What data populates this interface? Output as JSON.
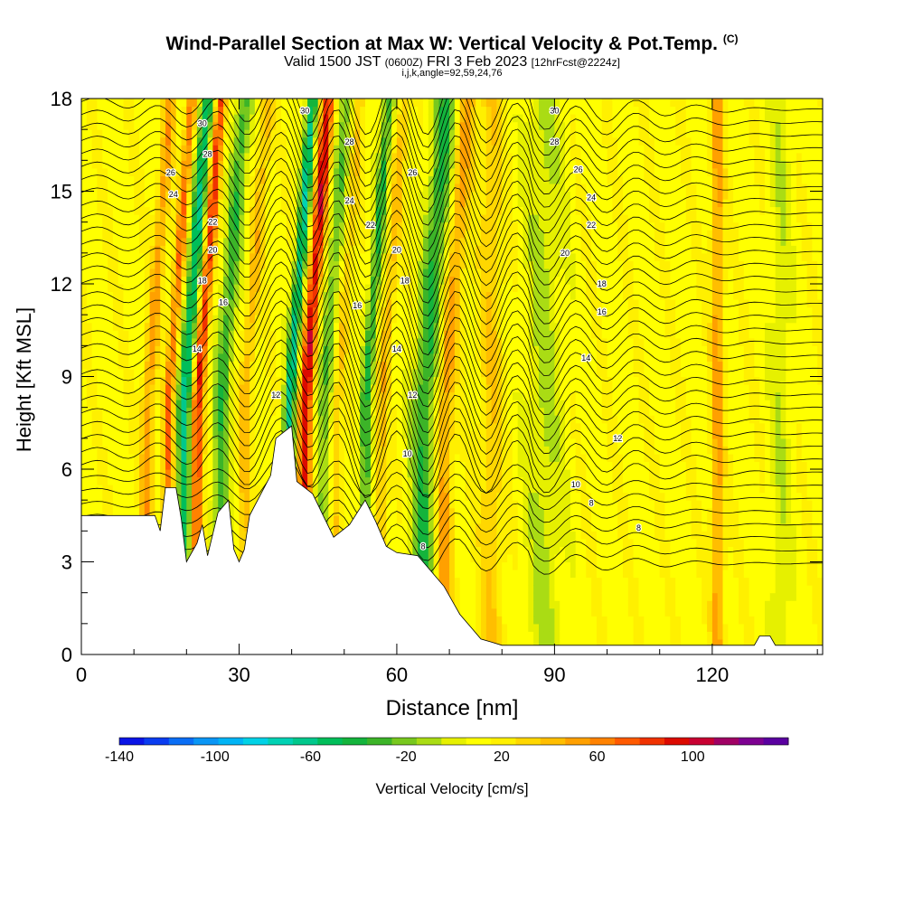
{
  "title": "Wind-Parallel Section at Max W: Vertical Velocity & Pot.Temp.",
  "title_mark": "(C)",
  "subtitle_prefix": "Valid 1500 JST",
  "subtitle_utc": "(0600Z)",
  "subtitle_date": "FRI 3 Feb 2023",
  "subtitle_fcst": "[12hrFcst@2224z]",
  "subtitle2": "i,j,k,angle=92,59,24,76",
  "chart_data": {
    "type": "heatmap",
    "xlabel": "Distance [nm]",
    "ylabel": "Height [Kft MSL]",
    "xlim": [
      0,
      141
    ],
    "ylim": [
      0,
      18
    ],
    "x_ticks": [
      "0",
      "30",
      "60",
      "90",
      "120"
    ],
    "y_ticks": [
      "0",
      "3",
      "6",
      "9",
      "12",
      "15",
      "18"
    ],
    "x_tick_values": [
      0,
      30,
      60,
      90,
      120
    ],
    "y_tick_values": [
      0,
      3,
      6,
      9,
      12,
      15,
      18
    ],
    "colorbar": {
      "title": "Vertical Velocity [cm/s]",
      "min": -140,
      "max": 140,
      "labels": [
        "-140",
        "-100",
        "-60",
        "-20",
        "20",
        "60",
        "100"
      ],
      "label_values": [
        -140,
        -100,
        -60,
        -20,
        20,
        60,
        100
      ],
      "colors": [
        "#0a14e6",
        "#0a3cf0",
        "#0a6ef5",
        "#0a96f5",
        "#00b4f5",
        "#00d2e6",
        "#00d2b4",
        "#00c88c",
        "#00be5a",
        "#14b43c",
        "#3cb428",
        "#78c81e",
        "#aadc14",
        "#e6f000",
        "#ffff00",
        "#fff000",
        "#ffd700",
        "#ffbe00",
        "#ffa000",
        "#ff8200",
        "#ff5a00",
        "#f03200",
        "#dc0a00",
        "#c80032",
        "#a00064",
        "#7d0091",
        "#5a00a0"
      ]
    },
    "theta_contour_labels": [
      {
        "label": "30",
        "x": 23,
        "y": 17.2
      },
      {
        "label": "28",
        "x": 24,
        "y": 16.2
      },
      {
        "label": "26",
        "x": 17,
        "y": 15.6
      },
      {
        "label": "24",
        "x": 17.5,
        "y": 14.9
      },
      {
        "label": "22",
        "x": 25,
        "y": 14.0
      },
      {
        "label": "20",
        "x": 25,
        "y": 13.1
      },
      {
        "label": "18",
        "x": 23,
        "y": 12.1
      },
      {
        "label": "16",
        "x": 27,
        "y": 11.4
      },
      {
        "label": "14",
        "x": 22,
        "y": 9.9
      },
      {
        "label": "12",
        "x": 37,
        "y": 8.4
      },
      {
        "label": "30",
        "x": 42.5,
        "y": 17.6
      },
      {
        "label": "28",
        "x": 51,
        "y": 16.6
      },
      {
        "label": "26",
        "x": 63,
        "y": 15.6
      },
      {
        "label": "24",
        "x": 51,
        "y": 14.7
      },
      {
        "label": "22",
        "x": 55,
        "y": 13.9
      },
      {
        "label": "20",
        "x": 60,
        "y": 13.1
      },
      {
        "label": "18",
        "x": 61.5,
        "y": 12.1
      },
      {
        "label": "16",
        "x": 52.5,
        "y": 11.3
      },
      {
        "label": "14",
        "x": 60,
        "y": 9.9
      },
      {
        "label": "12",
        "x": 63,
        "y": 8.4
      },
      {
        "label": "10",
        "x": 62,
        "y": 6.5
      },
      {
        "label": "8",
        "x": 65,
        "y": 3.5
      },
      {
        "label": "30",
        "x": 90,
        "y": 17.6
      },
      {
        "label": "28",
        "x": 90,
        "y": 16.6
      },
      {
        "label": "26",
        "x": 94.5,
        "y": 15.7
      },
      {
        "label": "24",
        "x": 97,
        "y": 14.8
      },
      {
        "label": "22",
        "x": 97,
        "y": 13.9
      },
      {
        "label": "20",
        "x": 92,
        "y": 13.0
      },
      {
        "label": "18",
        "x": 99,
        "y": 12.0
      },
      {
        "label": "16",
        "x": 99,
        "y": 11.1
      },
      {
        "label": "14",
        "x": 96,
        "y": 9.6
      },
      {
        "label": "12",
        "x": 102,
        "y": 7.0
      },
      {
        "label": "10",
        "x": 94,
        "y": 5.5
      },
      {
        "label": "8",
        "x": 97,
        "y": 4.9
      },
      {
        "label": "8",
        "x": 106,
        "y": 4.1
      }
    ]
  }
}
